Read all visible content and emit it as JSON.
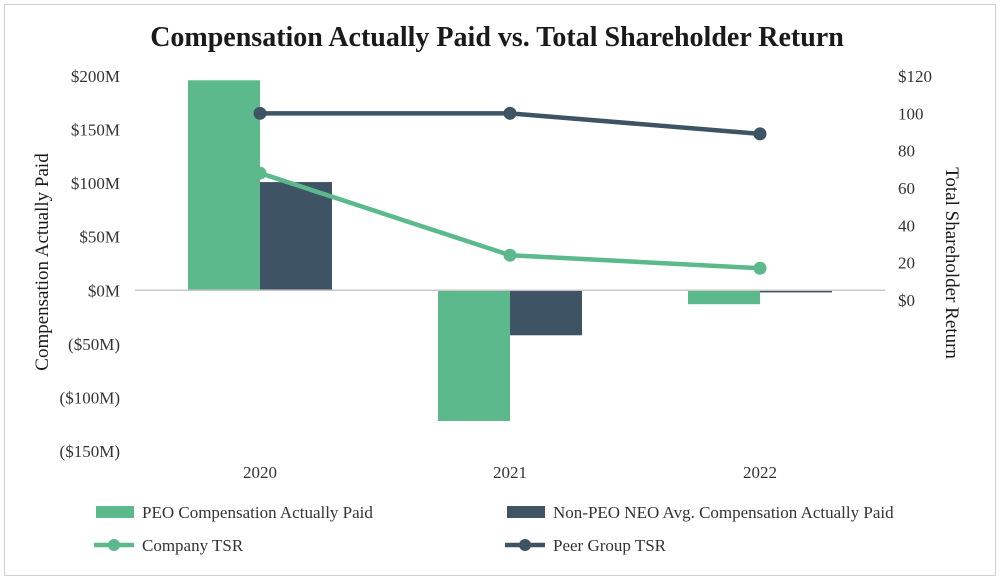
{
  "chart_data": {
    "type": "bar",
    "title": "Compensation Actually Paid vs. Total Shareholder Return",
    "categories": [
      "2020",
      "2021",
      "2022"
    ],
    "ylabel": "Compensation Actually Paid",
    "y2label": "Total Shareholder Return",
    "ylim": [
      -150,
      200
    ],
    "y2lim": [
      0,
      120
    ],
    "yticks": [
      -150,
      -100,
      -50,
      0,
      50,
      100,
      150,
      200
    ],
    "ytick_labels": [
      "($150M)",
      "($100M)",
      "($50M)",
      "$0M",
      "$50M",
      "$100M",
      "$150M",
      "$200M"
    ],
    "y2ticks": [
      0,
      20,
      40,
      60,
      80,
      100,
      120
    ],
    "y2tick_labels": [
      "$0",
      "20",
      "40",
      "60",
      "80",
      "100",
      "$120"
    ],
    "series": [
      {
        "name": "PEO Compensation Actually Paid",
        "type": "bar",
        "axis": "left",
        "color": "#5bb98c",
        "values": [
          196,
          -122,
          -13
        ]
      },
      {
        "name": "Non-PEO NEO Avg. Compensation Actually Paid",
        "type": "bar",
        "axis": "left",
        "color": "#3e5363",
        "values": [
          101,
          -42,
          -2
        ]
      },
      {
        "name": "Company TSR",
        "type": "line",
        "axis": "right",
        "color": "#5bb98c",
        "values": [
          68,
          24,
          17
        ]
      },
      {
        "name": "Peer Group TSR",
        "type": "line",
        "axis": "right",
        "color": "#3e5363",
        "values": [
          100,
          100,
          89
        ]
      }
    ],
    "legend": "bottom"
  }
}
